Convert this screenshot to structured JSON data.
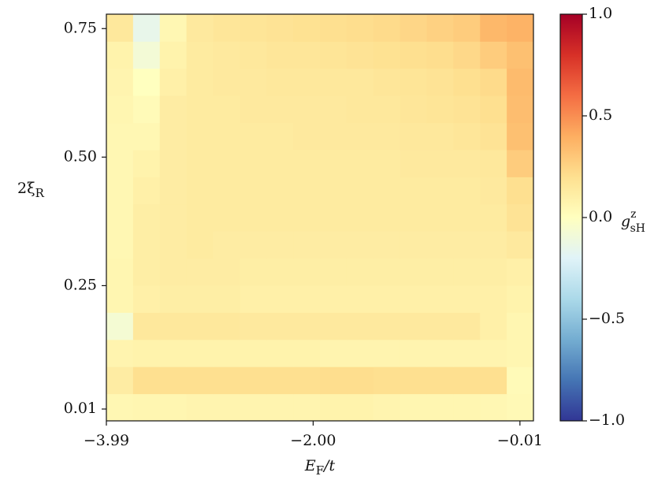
{
  "chart_data": {
    "type": "heatmap",
    "colormap": "RdYlBu_r",
    "xlim": [
      -3.99,
      0.12
    ],
    "ylim": [
      -0.013,
      0.778
    ],
    "xticks": [
      {
        "value": -3.99,
        "label": "−3.99"
      },
      {
        "value": -2.0,
        "label": "−2.00"
      },
      {
        "value": -0.01,
        "label": "−0.01"
      }
    ],
    "yticks": [
      0.01,
      0.25,
      {
        "value": 0.5,
        "label": "0.50"
      },
      0.75
    ],
    "x_label": {
      "main": "E",
      "sub": "F",
      "rest": "/t"
    },
    "y_label": {
      "main": "2ξ",
      "sub": "R"
    },
    "colorbar": {
      "lim": [
        -1.0,
        1.0
      ],
      "ticks": [
        {
          "value": 1.0,
          "label": "1.0"
        },
        0.5,
        {
          "value": 0.0,
          "label": "0.0"
        },
        {
          "value": -0.5,
          "label": "−0.5"
        },
        {
          "value": -1.0,
          "label": "−1.0"
        }
      ],
      "label": {
        "main": "g",
        "sup": "z",
        "sub": "sH"
      }
    },
    "z": [
      [
        0.05,
        0.06,
        0.06,
        0.07,
        0.07,
        0.07,
        0.07,
        0.07,
        0.08,
        0.08,
        0.07,
        0.06,
        0.06,
        0.06,
        0.05,
        0.04
      ],
      [
        0.12,
        0.2,
        0.2,
        0.2,
        0.2,
        0.2,
        0.2,
        0.2,
        0.21,
        0.21,
        0.2,
        0.2,
        0.2,
        0.2,
        0.2,
        0.03
      ],
      [
        0.07,
        0.08,
        0.08,
        0.08,
        0.08,
        0.08,
        0.08,
        0.08,
        0.07,
        0.07,
        0.07,
        0.07,
        0.07,
        0.07,
        0.07,
        0.06
      ],
      [
        -0.07,
        0.15,
        0.15,
        0.15,
        0.15,
        0.14,
        0.14,
        0.14,
        0.14,
        0.14,
        0.14,
        0.14,
        0.14,
        0.14,
        0.1,
        0.06
      ],
      [
        0.06,
        0.1,
        0.11,
        0.11,
        0.11,
        0.1,
        0.1,
        0.1,
        0.1,
        0.1,
        0.1,
        0.1,
        0.1,
        0.1,
        0.1,
        0.08
      ],
      [
        0.06,
        0.11,
        0.12,
        0.12,
        0.12,
        0.11,
        0.11,
        0.11,
        0.11,
        0.11,
        0.11,
        0.11,
        0.11,
        0.11,
        0.11,
        0.1
      ],
      [
        0.05,
        0.11,
        0.12,
        0.13,
        0.12,
        0.12,
        0.12,
        0.12,
        0.12,
        0.12,
        0.12,
        0.12,
        0.12,
        0.12,
        0.12,
        0.14
      ],
      [
        0.05,
        0.11,
        0.12,
        0.13,
        0.13,
        0.13,
        0.13,
        0.13,
        0.13,
        0.13,
        0.13,
        0.13,
        0.13,
        0.13,
        0.13,
        0.18
      ],
      [
        0.05,
        0.1,
        0.12,
        0.13,
        0.13,
        0.13,
        0.13,
        0.13,
        0.13,
        0.13,
        0.13,
        0.13,
        0.13,
        0.13,
        0.14,
        0.2
      ],
      [
        0.05,
        0.08,
        0.12,
        0.13,
        0.13,
        0.13,
        0.13,
        0.13,
        0.13,
        0.13,
        0.13,
        0.14,
        0.14,
        0.14,
        0.15,
        0.28
      ],
      [
        0.05,
        0.05,
        0.12,
        0.13,
        0.13,
        0.13,
        0.13,
        0.14,
        0.14,
        0.14,
        0.14,
        0.15,
        0.15,
        0.16,
        0.18,
        0.33
      ],
      [
        0.06,
        0.03,
        0.12,
        0.13,
        0.13,
        0.14,
        0.14,
        0.14,
        0.14,
        0.15,
        0.15,
        0.16,
        0.17,
        0.18,
        0.2,
        0.34
      ],
      [
        0.07,
        0.0,
        0.1,
        0.13,
        0.14,
        0.14,
        0.15,
        0.15,
        0.15,
        0.15,
        0.16,
        0.17,
        0.18,
        0.2,
        0.22,
        0.35
      ],
      [
        0.08,
        -0.08,
        0.08,
        0.13,
        0.14,
        0.15,
        0.16,
        0.16,
        0.17,
        0.18,
        0.19,
        0.2,
        0.21,
        0.23,
        0.28,
        0.33
      ],
      [
        0.15,
        -0.15,
        0.05,
        0.14,
        0.16,
        0.17,
        0.18,
        0.19,
        0.2,
        0.21,
        0.22,
        0.24,
        0.26,
        0.28,
        0.36,
        0.38
      ]
    ]
  }
}
